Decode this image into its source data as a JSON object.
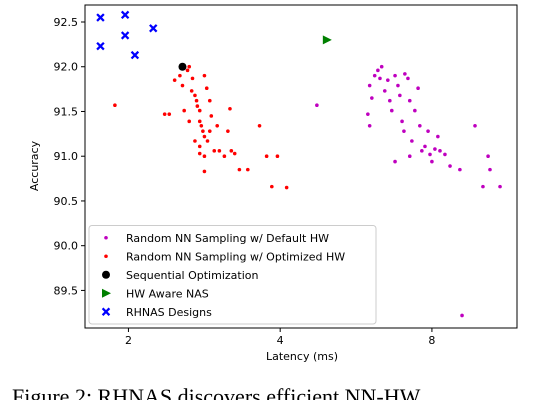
{
  "chart_data": {
    "type": "scatter",
    "x_label": "Latency (ms)",
    "y_label": "Accuracy",
    "caption": "Figure 2: RHNAS discovers efficient NN-HW",
    "xscale": "log",
    "xlim": [
      1.64,
      11.8
    ],
    "ylim": [
      89.08,
      92.69
    ],
    "xticks": [
      2,
      4,
      8
    ],
    "yticks": [
      {
        "value": 89.5,
        "label": "89.5"
      },
      {
        "value": 90.0,
        "label": "90.0"
      },
      {
        "value": 90.5,
        "label": "90.5"
      },
      {
        "value": 91.0,
        "label": "91.0"
      },
      {
        "value": 91.5,
        "label": "91.5"
      },
      {
        "value": 92.0,
        "label": "92.0"
      },
      {
        "value": 92.5,
        "label": "92.5"
      }
    ],
    "legend": "lower left",
    "series": [
      {
        "name": "Random NN Sampling w/ Default HW",
        "color": "#bf00bf",
        "marker": "o",
        "x": [
          4.73,
          5.97,
          6.02,
          6.08,
          6.16,
          6.25,
          6.31,
          6.36,
          6.45,
          6.54,
          6.6,
          6.66,
          6.76,
          6.85,
          6.91,
          6.98,
          7.04,
          7.07,
          7.17,
          7.23,
          7.3,
          7.4,
          7.51,
          7.57,
          7.64,
          7.75,
          7.86,
          7.93,
          8.0,
          8.11,
          8.22,
          8.3,
          8.49,
          8.69,
          9.09,
          9.74,
          10.1,
          10.34,
          10.43,
          10.92,
          9.18,
          6.02,
          6.76,
          7.23
        ],
        "y": [
          91.57,
          91.47,
          91.79,
          91.65,
          91.9,
          91.96,
          91.87,
          92.0,
          91.73,
          91.85,
          91.62,
          91.51,
          91.9,
          91.79,
          91.68,
          91.39,
          91.28,
          91.92,
          91.87,
          91.62,
          91.17,
          91.51,
          91.76,
          91.34,
          91.06,
          91.11,
          91.28,
          91.02,
          90.94,
          91.08,
          91.22,
          91.06,
          91.02,
          90.89,
          90.85,
          91.34,
          90.66,
          91.0,
          90.85,
          90.66,
          89.22,
          91.34,
          90.94,
          91.0
        ]
      },
      {
        "name": "Random NN Sampling w/ Optimized HW",
        "color": "#ff0000",
        "marker": "o",
        "x": [
          1.88,
          2.36,
          2.41,
          2.47,
          2.53,
          2.56,
          2.62,
          2.64,
          2.67,
          2.68,
          2.71,
          2.73,
          2.74,
          2.77,
          2.77,
          2.79,
          2.81,
          2.83,
          2.83,
          2.86,
          2.87,
          2.9,
          2.92,
          2.96,
          2.83,
          2.77,
          3.03,
          3.1,
          3.15,
          3.18,
          3.2,
          3.25,
          3.32,
          3.45,
          3.64,
          3.76,
          3.85,
          3.95,
          4.12,
          2.71,
          2.9,
          2.58,
          2.77,
          3.0,
          2.83,
          2.64
        ],
        "y": [
          91.57,
          91.47,
          91.47,
          91.85,
          91.9,
          91.79,
          91.96,
          92.0,
          91.73,
          91.87,
          91.68,
          91.62,
          91.56,
          91.51,
          91.39,
          91.34,
          91.28,
          91.22,
          91.9,
          91.76,
          91.17,
          91.62,
          91.45,
          91.06,
          91.0,
          91.03,
          91.06,
          91.0,
          91.28,
          91.53,
          91.06,
          91.03,
          90.85,
          90.85,
          91.34,
          91.0,
          90.66,
          91.0,
          90.65,
          91.17,
          91.28,
          91.51,
          91.11,
          91.34,
          90.83,
          91.39
        ]
      },
      {
        "name": "Sequential Optimization",
        "color": "#000000",
        "marker": "O",
        "x": [
          2.56
        ],
        "y": [
          92.0
        ]
      },
      {
        "name": "HW Aware NAS",
        "color": "#008000",
        "marker": ">",
        "x": [
          4.95
        ],
        "y": [
          92.3
        ]
      },
      {
        "name": "RHNAS Designs",
        "color": "#0000ff",
        "marker": "X",
        "x": [
          1.76,
          1.97,
          1.76,
          1.97,
          2.06,
          2.24
        ],
        "y": [
          92.55,
          92.58,
          92.23,
          92.35,
          92.13,
          92.43
        ]
      }
    ]
  }
}
